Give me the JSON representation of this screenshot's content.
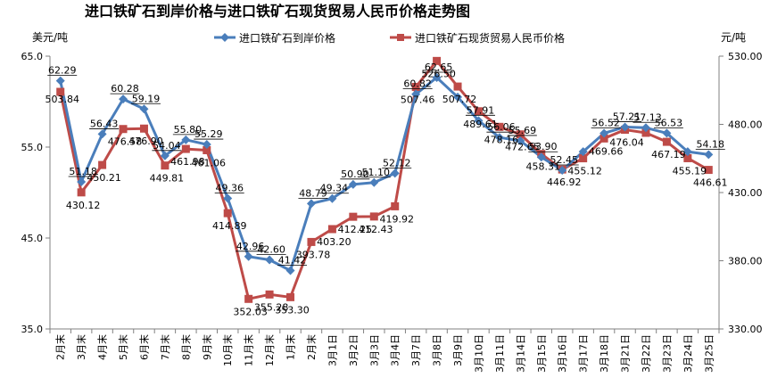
{
  "chart_data": {
    "type": "line",
    "title": "进口铁矿石到岸价格与进口铁矿石现货贸易人民币价格走势图",
    "ylabel_left": "美元/吨",
    "ylabel_right": "元/吨",
    "ylim_left": [
      35,
      65
    ],
    "yticks_left": [
      "35.0",
      "45.0",
      "55.0",
      "65.0"
    ],
    "ylim_right": [
      330,
      530
    ],
    "yticks_right": [
      "330.00",
      "380.00",
      "430.00",
      "480.00",
      "530.00"
    ],
    "legend_position": "top",
    "grid": false,
    "categories": [
      "2月末",
      "3月末",
      "4月末",
      "5月末",
      "6月末",
      "7月末",
      "8月末",
      "9月末",
      "10月末",
      "11月末",
      "12月末",
      "1月末",
      "2月末",
      "3月1日",
      "3月2日",
      "3月3日",
      "3月4日",
      "3月7日",
      "3月8日",
      "3月9日",
      "3月10日",
      "3月11日",
      "3月14日",
      "3月15日",
      "3月16日",
      "3月17日",
      "3月18日",
      "3月21日",
      "3月22日",
      "3月23日",
      "3月24日",
      "3月25日"
    ],
    "series": [
      {
        "name": "进口铁矿石到岸价格",
        "axis": "left",
        "color": "#4a7ebb",
        "marker": "diamond",
        "values": [
          62.29,
          51.18,
          56.43,
          60.28,
          59.19,
          54.04,
          55.8,
          55.29,
          49.36,
          42.96,
          42.6,
          41.42,
          48.79,
          49.34,
          50.9,
          51.1,
          52.12,
          60.82,
          62.65,
          60.5,
          57.91,
          56.06,
          55.69,
          53.9,
          52.45,
          54.5,
          56.52,
          57.21,
          57.13,
          56.53,
          54.5,
          54.18
        ],
        "labels": [
          "62.29",
          "51.18",
          "56.43",
          "60.28",
          "59.19",
          "54.04",
          "55.80",
          "55.29",
          "49.36",
          "42.96",
          "42.60",
          "41.42",
          "48.79",
          "49.34",
          "50.90",
          "51.10",
          "52.12",
          "60.82",
          "62.65",
          "",
          "57.91",
          "56.06",
          "55.69",
          "53.90",
          "52.45",
          "",
          "56.52",
          "57.21",
          "57.13",
          "56.53",
          "",
          "54.18"
        ]
      },
      {
        "name": "进口铁矿石现货贸易人民币价格",
        "axis": "right",
        "color": "#be4b48",
        "marker": "square",
        "values": [
          503.84,
          430.12,
          450.21,
          476.58,
          476.9,
          449.81,
          461.98,
          461.06,
          414.89,
          352.03,
          355.28,
          353.3,
          393.78,
          403.2,
          412.25,
          412.43,
          419.92,
          507.46,
          526.5,
          507.72,
          489.61,
          478.16,
          472.65,
          458.31,
          446.92,
          455.12,
          469.66,
          476.04,
          473.8,
          467.19,
          455.19,
          446.61
        ],
        "labels": [
          "503.84",
          "430.12",
          "450.21",
          "476.58",
          "476.90",
          "449.81",
          "461.98",
          "461.06",
          "414.89",
          "352.03",
          "355.28",
          "353.30",
          "393.78",
          "403.20",
          "412.25",
          "412.43",
          "419.92",
          "507.46",
          "526.50",
          "507.72",
          "489.61",
          "478.16",
          "472.65",
          "458.31",
          "446.92",
          "455.12",
          "469.66",
          "476.04",
          "",
          "467.19",
          "455.19",
          "446.61"
        ]
      }
    ]
  }
}
